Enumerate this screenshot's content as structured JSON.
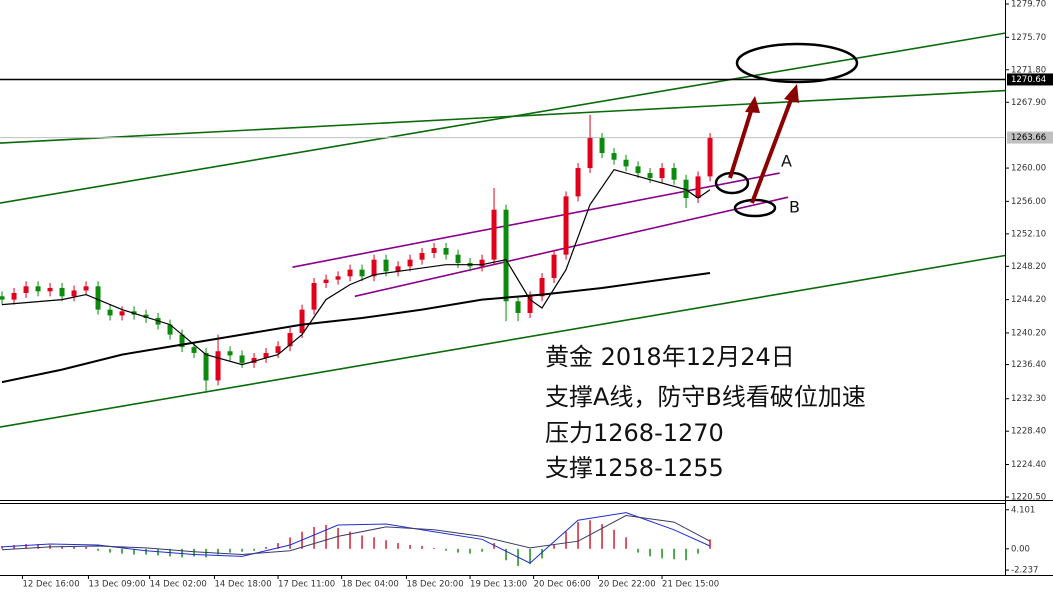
{
  "chart_data": [
    {
      "type": "candlestick",
      "open": [
        1244.6,
        1244.2,
        1245.0,
        1245.8,
        1245.2,
        1245.6,
        1244.6,
        1245.3,
        1245.8,
        1243.0,
        1242.3,
        1242.8,
        1242.4,
        1242.0,
        1241.2,
        1240.0,
        1238.5,
        1237.8,
        1234.5,
        1238.0,
        1237.5,
        1236.6,
        1237.2,
        1237.8,
        1238.6,
        1240.2,
        1243.0,
        1246.2,
        1246.6,
        1247.0,
        1247.8,
        1247.0,
        1249.0,
        1247.6,
        1248.2,
        1249.0,
        1249.8,
        1250.4,
        1249.6,
        1248.6,
        1248.2,
        1249.0,
        1255.0,
        1244.0,
        1242.6,
        1244.6,
        1246.8,
        1249.6,
        1256.6,
        1260.0,
        1263.6,
        1261.8,
        1261.0,
        1260.2,
        1259.4,
        1258.8,
        1260.0,
        1258.6,
        1256.4,
        1259.0
      ],
      "high": [
        1245.2,
        1245.6,
        1246.4,
        1246.4,
        1246.2,
        1246.2,
        1245.9,
        1246.4,
        1246.4,
        1243.6,
        1243.4,
        1243.4,
        1243.0,
        1242.6,
        1241.8,
        1240.6,
        1239.1,
        1238.4,
        1240.0,
        1238.6,
        1238.1,
        1237.8,
        1238.4,
        1239.2,
        1240.8,
        1243.6,
        1246.8,
        1247.2,
        1247.6,
        1248.4,
        1248.4,
        1249.6,
        1249.6,
        1248.8,
        1249.6,
        1250.4,
        1251.0,
        1251.0,
        1250.2,
        1249.2,
        1249.6,
        1257.6,
        1255.6,
        1244.6,
        1245.2,
        1247.4,
        1250.2,
        1257.2,
        1260.6,
        1266.4,
        1264.2,
        1262.4,
        1261.6,
        1260.8,
        1260.0,
        1260.6,
        1260.6,
        1259.2,
        1259.6,
        1264.2
      ],
      "low": [
        1243.6,
        1243.6,
        1244.4,
        1244.6,
        1244.6,
        1244.0,
        1244.0,
        1244.7,
        1242.4,
        1241.7,
        1241.7,
        1241.8,
        1241.4,
        1240.6,
        1239.4,
        1237.9,
        1237.2,
        1233.0,
        1233.9,
        1236.9,
        1236.0,
        1236.0,
        1236.6,
        1237.2,
        1238.0,
        1239.6,
        1242.4,
        1245.6,
        1246.0,
        1246.4,
        1246.4,
        1246.4,
        1247.0,
        1247.0,
        1247.6,
        1248.4,
        1249.2,
        1249.0,
        1248.0,
        1247.6,
        1247.6,
        1248.4,
        1241.6,
        1241.6,
        1242.0,
        1244.0,
        1246.2,
        1249.0,
        1256.0,
        1259.4,
        1261.2,
        1260.4,
        1259.6,
        1258.8,
        1258.2,
        1258.2,
        1258.0,
        1255.2,
        1255.8,
        1258.4
      ],
      "close": [
        1244.2,
        1245.0,
        1245.8,
        1245.2,
        1245.6,
        1244.6,
        1245.3,
        1245.8,
        1243.0,
        1242.3,
        1242.8,
        1242.4,
        1242.0,
        1241.2,
        1240.0,
        1238.5,
        1237.8,
        1234.5,
        1238.0,
        1237.5,
        1236.6,
        1237.2,
        1237.8,
        1238.6,
        1240.2,
        1243.0,
        1246.2,
        1246.6,
        1247.0,
        1247.8,
        1247.0,
        1249.0,
        1247.6,
        1248.2,
        1249.0,
        1249.8,
        1250.4,
        1249.6,
        1248.6,
        1248.2,
        1249.0,
        1255.0,
        1244.0,
        1242.6,
        1244.6,
        1246.8,
        1249.6,
        1256.6,
        1260.0,
        1263.6,
        1261.8,
        1261.0,
        1260.2,
        1259.4,
        1258.8,
        1260.0,
        1258.6,
        1256.4,
        1259.0,
        1263.6
      ],
      "up_color": "#e0001b",
      "down_color": "#0b8a0b",
      "xlim": [
        -0.17,
        83.58
      ],
      "ylim": [
        1220.14,
        1280.18
      ],
      "yticks": [
        {
          "value": 1279.7,
          "label": "1279.70"
        },
        {
          "value": 1275.7,
          "label": "1275.70"
        },
        {
          "value": 1271.8,
          "label": "1271.80"
        },
        {
          "value": 1267.9,
          "label": "1267.90"
        },
        {
          "value": 1260.0,
          "label": "1260.00"
        },
        {
          "value": 1256.0,
          "label": "1256.00"
        },
        {
          "value": 1252.1,
          "label": "1252.10"
        },
        {
          "value": 1248.2,
          "label": "1248.20"
        },
        {
          "value": 1244.2,
          "label": "1244.20"
        },
        {
          "value": 1240.2,
          "label": "1240.20"
        },
        {
          "value": 1236.4,
          "label": "1236.40"
        },
        {
          "value": 1232.3,
          "label": "1232.30"
        },
        {
          "value": 1228.4,
          "label": "1228.40"
        },
        {
          "value": 1224.4,
          "label": "1224.40"
        },
        {
          "value": 1220.5,
          "label": "1220.50"
        }
      ],
      "xticks": [
        {
          "value": 1.7,
          "label": "12 Dec 16:00"
        },
        {
          "value": 7.2,
          "label": "13 Dec 09:00"
        },
        {
          "value": 12.3,
          "label": "14 Dec 02:00"
        },
        {
          "value": 17.7,
          "label": "14 Dec 18:00"
        },
        {
          "value": 23,
          "label": "17 Dec 11:00"
        },
        {
          "value": 28.3,
          "label": "18 Dec 04:00"
        },
        {
          "value": 33.7,
          "label": "18 Dec 20:00"
        },
        {
          "value": 39,
          "label": "19 Dec 13:00"
        },
        {
          "value": 44.3,
          "label": "20 Dec 06:00"
        },
        {
          "value": 49.7,
          "label": "20 Dec 22:00"
        },
        {
          "value": 55,
          "label": "21 Dec 15:00"
        }
      ],
      "hlines": [
        {
          "value": 1270.64,
          "color": "#000000"
        },
        {
          "value": 1263.66,
          "color": "#c0c0c0"
        }
      ],
      "lines": [
        {
          "color": "#000000",
          "width": 1.2,
          "x": [
            0,
            5,
            7,
            10,
            14,
            17,
            20,
            23,
            25,
            27,
            29,
            31,
            34,
            37,
            40,
            42,
            44,
            45,
            47,
            49,
            51,
            54,
            57,
            58,
            59
          ],
          "values": [
            1243.6,
            1244.2,
            1244.8,
            1243.0,
            1241.2,
            1237.6,
            1236.4,
            1237.6,
            1240.0,
            1244.2,
            1246.0,
            1247.2,
            1247.8,
            1248.4,
            1248.4,
            1249.0,
            1244.2,
            1243.2,
            1247.8,
            1255.6,
            1259.8,
            1258.6,
            1257.4,
            1256.4,
            1257.4
          ]
        },
        {
          "color": "#000000",
          "width": 2,
          "x": [
            0,
            5,
            10,
            15,
            20,
            25,
            30,
            35,
            40,
            45,
            50,
            55,
            59
          ],
          "values": [
            1234.3,
            1235.8,
            1237.6,
            1238.8,
            1240.0,
            1241.2,
            1242.0,
            1243.0,
            1244.2,
            1244.8,
            1245.6,
            1246.6,
            1247.4
          ]
        }
      ],
      "trendlines": [
        {
          "color": "#0a6b0a",
          "x": [
            -0.17,
            83.58
          ],
          "values": [
            1255.8,
            1276.2
          ]
        },
        {
          "color": "#0a6b0a",
          "x": [
            -0.17,
            83.58
          ],
          "values": [
            1263.0,
            1269.3
          ]
        },
        {
          "color": "#0a6b0a",
          "x": [
            -0.17,
            83.58
          ],
          "values": [
            1228.9,
            1249.5
          ]
        },
        {
          "color": "#8b008b",
          "x": [
            24.2,
            64.8
          ],
          "values": [
            1248.1,
            1259.4
          ]
        },
        {
          "color": "#8b008b",
          "x": [
            29.4,
            65.5
          ],
          "values": [
            1244.6,
            1256.5
          ]
        }
      ],
      "labels": [
        "A",
        "B"
      ],
      "note": [
        "黄金 2018年12月24日",
        "支撑A线，防守B线看破位加速",
        "压力1268-1270",
        "支撑1258-1255"
      ]
    },
    {
      "type": "macd",
      "histogram": [
        0.3,
        0.4,
        0.5,
        0.5,
        0.4,
        0.3,
        0.3,
        0.2,
        -0.2,
        -0.4,
        -0.5,
        -0.6,
        -0.6,
        -0.7,
        -0.8,
        -0.9,
        -0.8,
        -0.9,
        -0.6,
        -0.4,
        -0.3,
        -0.2,
        0.2,
        0.6,
        1.2,
        1.8,
        2.3,
        2.5,
        2.2,
        1.8,
        1.4,
        1.2,
        0.9,
        0.6,
        0.4,
        0.3,
        0.1,
        -0.2,
        -0.4,
        -0.5,
        -0.3,
        0.6,
        -1.2,
        -1.8,
        -1.6,
        -1.0,
        0.5,
        1.8,
        2.8,
        3.0,
        2.6,
        2.0,
        1.2,
        -0.4,
        -0.8,
        -1.0,
        -1.1,
        -1.2,
        -0.5,
        1.0
      ],
      "up_color": "#d02030",
      "down_color": "#1a8c1a",
      "ylim": [
        -2.75,
        4.6
      ],
      "yticks": [
        4.101,
        {
          "value": 0,
          "label": "0.00"
        },
        -2.237
      ],
      "lines": [
        {
          "color": "#1f2fd0",
          "x": [
            0,
            4,
            8,
            12,
            16,
            20,
            24,
            28,
            32,
            36,
            40,
            44,
            48,
            52,
            56,
            59
          ],
          "values": [
            0.2,
            0.5,
            0.4,
            -0.2,
            -0.6,
            -0.8,
            0.4,
            2.5,
            2.6,
            1.8,
            1.0,
            -1.5,
            3.0,
            3.8,
            2.0,
            0.3
          ]
        },
        {
          "color": "#3a3a6a",
          "x": [
            0,
            4,
            8,
            12,
            16,
            20,
            24,
            28,
            32,
            36,
            40,
            44,
            48,
            52,
            56,
            59
          ],
          "values": [
            -0.1,
            0.2,
            0.3,
            0.1,
            -0.3,
            -0.6,
            -0.2,
            1.3,
            2.3,
            2.0,
            1.3,
            0.1,
            0.8,
            3.5,
            2.8,
            0.8
          ]
        }
      ]
    }
  ]
}
